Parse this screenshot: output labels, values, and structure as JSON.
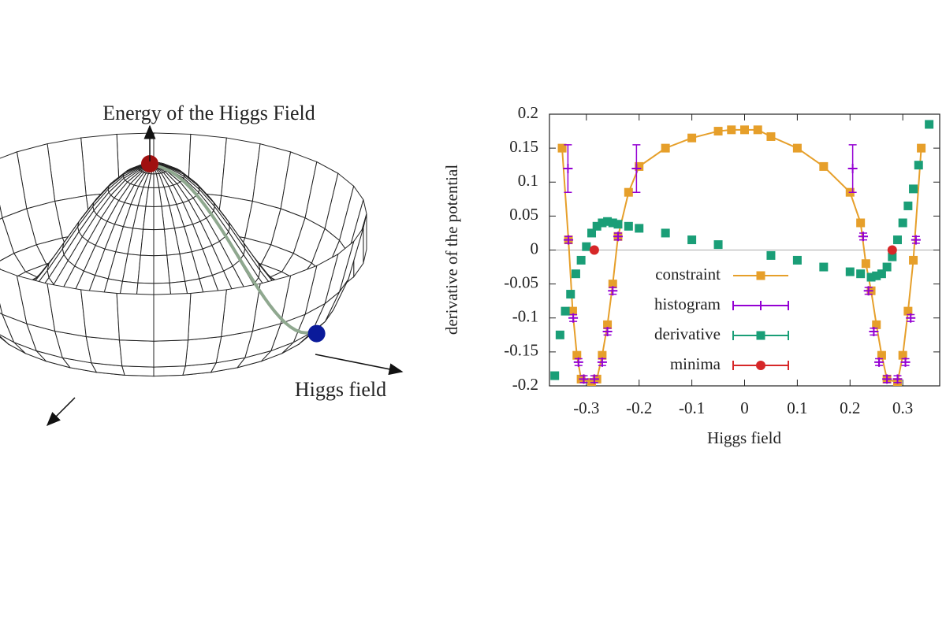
{
  "diagram": {
    "title": "Energy of the Higgs Field",
    "axis_label": "Higgs field"
  },
  "chart_data": {
    "type": "scatter",
    "xlabel": "Higgs field",
    "ylabel": "derivative of the potential",
    "xlim": [
      -0.37,
      0.37
    ],
    "ylim": [
      -0.2,
      0.2
    ],
    "xticks": [
      -0.3,
      -0.2,
      -0.1,
      0,
      0.1,
      0.2,
      0.3
    ],
    "yticks": [
      0.2,
      0.15,
      0.1,
      0.05,
      0,
      -0.05,
      -0.1,
      -0.15,
      -0.2
    ],
    "zero_line": true,
    "series": [
      {
        "name": "constraint",
        "color": "#e69f2a",
        "marker": "square",
        "line": true,
        "x": [
          -0.346,
          -0.334,
          -0.326,
          -0.318,
          -0.31,
          -0.29,
          -0.28,
          -0.27,
          -0.26,
          -0.25,
          -0.24,
          -0.22,
          -0.2,
          -0.15,
          -0.1,
          -0.05,
          -0.025,
          0,
          0.025,
          0.05,
          0.1,
          0.15,
          0.2,
          0.22,
          0.23,
          0.24,
          0.25,
          0.26,
          0.27,
          0.29,
          0.3,
          0.31,
          0.32,
          0.335
        ],
        "values": [
          0.15,
          0.015,
          -0.09,
          -0.155,
          -0.19,
          -0.195,
          -0.19,
          -0.155,
          -0.11,
          -0.05,
          0.02,
          0.085,
          0.123,
          0.15,
          0.165,
          0.175,
          0.177,
          0.177,
          0.177,
          0.167,
          0.15,
          0.123,
          0.085,
          0.04,
          -0.02,
          -0.06,
          -0.11,
          -0.155,
          -0.19,
          -0.195,
          -0.155,
          -0.09,
          -0.015,
          0.15
        ]
      },
      {
        "name": "histogram",
        "color": "#9400d3",
        "marker": "plus",
        "errorbars": true,
        "x": [
          -0.335,
          -0.334,
          -0.325,
          -0.315,
          -0.305,
          -0.285,
          -0.27,
          -0.26,
          -0.25,
          -0.24,
          -0.205,
          0.205,
          0.225,
          0.235,
          0.245,
          0.255,
          0.27,
          0.29,
          0.305,
          0.315,
          0.325
        ],
        "values": [
          0.12,
          0.015,
          -0.1,
          -0.165,
          -0.19,
          -0.19,
          -0.165,
          -0.12,
          -0.06,
          0.02,
          0.12,
          0.12,
          0.02,
          -0.06,
          -0.12,
          -0.165,
          -0.19,
          -0.19,
          -0.165,
          -0.1,
          0.015
        ],
        "errors": [
          0.035,
          0.005,
          0.005,
          0.005,
          0.005,
          0.005,
          0.005,
          0.005,
          0.005,
          0.005,
          0.035,
          0.035,
          0.005,
          0.005,
          0.005,
          0.005,
          0.005,
          0.005,
          0.005,
          0.005,
          0.005
        ]
      },
      {
        "name": "derivative",
        "color": "#1a9e77",
        "marker": "square",
        "x": [
          -0.36,
          -0.35,
          -0.34,
          -0.33,
          -0.32,
          -0.31,
          -0.3,
          -0.29,
          -0.28,
          -0.27,
          -0.26,
          -0.25,
          -0.24,
          -0.22,
          -0.2,
          -0.15,
          -0.1,
          -0.05,
          0.05,
          0.1,
          0.15,
          0.2,
          0.22,
          0.24,
          0.25,
          0.26,
          0.27,
          0.28,
          0.29,
          0.3,
          0.31,
          0.32,
          0.33,
          0.35
        ],
        "values": [
          -0.185,
          -0.125,
          -0.09,
          -0.065,
          -0.035,
          -0.015,
          0.005,
          0.025,
          0.035,
          0.04,
          0.042,
          0.04,
          0.038,
          0.035,
          0.032,
          0.025,
          0.015,
          0.008,
          -0.008,
          -0.015,
          -0.025,
          -0.032,
          -0.035,
          -0.04,
          -0.038,
          -0.035,
          -0.025,
          -0.01,
          0.015,
          0.04,
          0.065,
          0.09,
          0.125,
          0.185
        ]
      },
      {
        "name": "minima",
        "color": "#d62728",
        "marker": "circle",
        "x": [
          -0.285,
          0.28
        ],
        "values": [
          0,
          0
        ]
      }
    ]
  }
}
